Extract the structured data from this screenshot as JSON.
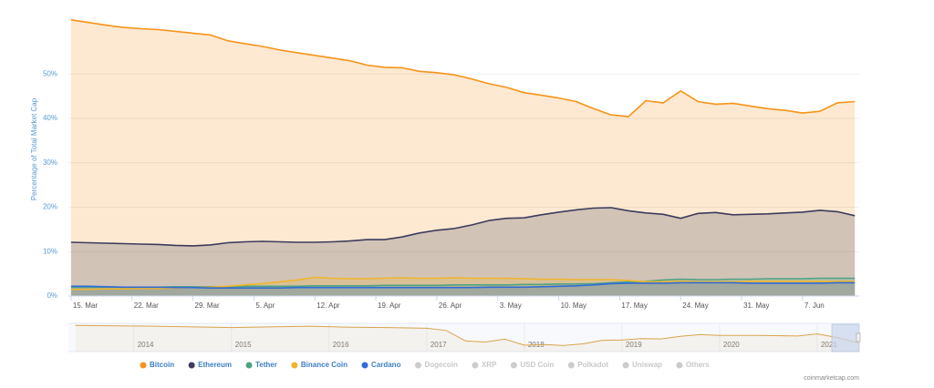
{
  "chart_data": [
    {
      "type": "line",
      "y_label": "Percentage of Total Market Cap",
      "credit": "coinmarketcap.com",
      "grid": true,
      "area": true,
      "x": [
        0,
        2,
        4,
        6,
        8,
        10,
        12,
        14,
        16,
        18,
        20,
        22,
        24,
        26,
        28,
        30,
        32,
        34,
        36,
        38,
        40,
        42,
        44,
        46,
        48,
        50,
        52,
        54,
        56,
        58,
        60,
        62,
        64,
        66,
        68,
        70,
        72,
        74,
        76,
        78,
        80,
        82,
        84,
        86,
        88,
        90
      ],
      "xlim": [
        -0.3,
        90.5
      ],
      "xticks": [
        {
          "value": 0,
          "label": "15. Mar"
        },
        {
          "value": 7,
          "label": "22. Mar"
        },
        {
          "value": 14,
          "label": "29. Mar"
        },
        {
          "value": 21,
          "label": "5. Apr"
        },
        {
          "value": 28,
          "label": "12. Apr"
        },
        {
          "value": 35,
          "label": "19. Apr"
        },
        {
          "value": 42,
          "label": "26. Apr"
        },
        {
          "value": 49,
          "label": "3. May"
        },
        {
          "value": 56,
          "label": "10. May"
        },
        {
          "value": 63,
          "label": "17. May"
        },
        {
          "value": 70,
          "label": "24. May"
        },
        {
          "value": 77,
          "label": "31. May"
        },
        {
          "value": 84,
          "label": "7. Jun"
        }
      ],
      "ylim": [
        0,
        64
      ],
      "yticks": [
        {
          "value": 0,
          "label": "0%"
        },
        {
          "value": 10,
          "label": "10%"
        },
        {
          "value": 20,
          "label": "20%"
        },
        {
          "value": 30,
          "label": "30%"
        },
        {
          "value": 40,
          "label": "40%"
        },
        {
          "value": 50,
          "label": "50%"
        }
      ],
      "series": [
        {
          "name": "Bitcoin",
          "color": "#f7931a",
          "values": [
            62.2,
            61.6,
            61.0,
            60.5,
            60.2,
            60.0,
            59.6,
            59.2,
            58.8,
            57.5,
            56.8,
            56.2,
            55.4,
            54.8,
            54.2,
            53.6,
            53.0,
            52.0,
            51.5,
            51.4,
            50.6,
            50.3,
            49.8,
            48.9,
            47.8,
            47.0,
            45.8,
            45.2,
            44.6,
            43.8,
            42.2,
            40.8,
            40.4,
            44.0,
            43.5,
            46.2,
            43.8,
            43.2,
            43.4,
            42.8,
            42.2,
            41.8,
            41.2,
            41.6,
            43.5,
            43.8
          ]
        },
        {
          "name": "Ethereum",
          "color": "#3c3c5d",
          "values": [
            12.1,
            12.0,
            11.9,
            11.8,
            11.7,
            11.6,
            11.4,
            11.3,
            11.5,
            12.0,
            12.2,
            12.3,
            12.2,
            12.1,
            12.1,
            12.2,
            12.4,
            12.7,
            12.7,
            13.3,
            14.2,
            14.8,
            15.2,
            16.0,
            17.0,
            17.5,
            17.6,
            18.3,
            18.9,
            19.4,
            19.8,
            19.9,
            19.2,
            18.7,
            18.4,
            17.5,
            18.6,
            18.8,
            18.3,
            18.4,
            18.5,
            18.7,
            18.9,
            19.3,
            19.0,
            18.1
          ]
        },
        {
          "name": "Tether",
          "color": "#4fa383",
          "values": [
            2.0,
            2.0,
            2.0,
            2.0,
            2.0,
            2.0,
            2.1,
            2.1,
            2.1,
            2.1,
            2.2,
            2.2,
            2.2,
            2.2,
            2.3,
            2.3,
            2.3,
            2.3,
            2.4,
            2.4,
            2.4,
            2.4,
            2.5,
            2.5,
            2.5,
            2.5,
            2.6,
            2.6,
            2.7,
            2.7,
            2.8,
            3.0,
            3.2,
            3.3,
            3.6,
            3.8,
            3.7,
            3.7,
            3.8,
            3.8,
            3.9,
            3.9,
            3.9,
            4.0,
            4.0,
            4.0
          ]
        },
        {
          "name": "Binance Coin",
          "color": "#f0b52b",
          "values": [
            1.5,
            1.5,
            1.6,
            1.6,
            1.7,
            1.7,
            1.8,
            1.9,
            2.0,
            2.2,
            2.5,
            2.8,
            3.2,
            3.6,
            4.2,
            4.0,
            3.9,
            3.9,
            4.0,
            4.1,
            4.0,
            4.0,
            4.1,
            4.0,
            4.0,
            4.0,
            3.9,
            3.8,
            3.8,
            3.7,
            3.7,
            3.7,
            3.5,
            3.2,
            3.2,
            3.3,
            3.2,
            3.2,
            3.2,
            3.3,
            3.3,
            3.3,
            3.3,
            3.3,
            3.3,
            3.3
          ]
        },
        {
          "name": "Cardano",
          "color": "#2f6bd6",
          "values": [
            2.2,
            2.2,
            2.1,
            2.0,
            2.0,
            2.0,
            1.9,
            1.9,
            1.8,
            1.8,
            1.8,
            1.8,
            1.8,
            1.9,
            1.9,
            1.9,
            1.9,
            1.9,
            1.9,
            1.9,
            1.9,
            1.9,
            1.9,
            1.9,
            2.0,
            2.0,
            2.0,
            2.1,
            2.2,
            2.3,
            2.5,
            2.8,
            2.9,
            2.9,
            2.9,
            3.0,
            3.0,
            3.0,
            3.0,
            2.9,
            2.9,
            2.9,
            2.9,
            2.9,
            3.0,
            3.0
          ]
        }
      ],
      "hidden_series": [
        "Dogecoin",
        "XRP",
        "USD Coin",
        "Polkadot",
        "Uniswap",
        "Others"
      ]
    },
    {
      "type": "navigator",
      "color": "#d9a44c",
      "x": [
        2013.4,
        2013.8,
        2014.2,
        2014.6,
        2015,
        2015.4,
        2015.8,
        2016.2,
        2016.6,
        2017,
        2017.2,
        2017.4,
        2017.6,
        2017.8,
        2018,
        2018.2,
        2018.4,
        2018.6,
        2018.8,
        2019,
        2019.2,
        2019.4,
        2019.6,
        2019.8,
        2020,
        2020.4,
        2020.8,
        2021,
        2021.2,
        2021.43
      ],
      "values": [
        94,
        93,
        92,
        90,
        88,
        90,
        92,
        89,
        88,
        86,
        80,
        50,
        47,
        55,
        38,
        40,
        37,
        42,
        52,
        53,
        57,
        56,
        63,
        68,
        66,
        66,
        64,
        70,
        60,
        44
      ],
      "xlim": [
        2013.33,
        2021.43
      ],
      "ylim": [
        20,
        100
      ],
      "xticks": [
        2014,
        2015,
        2016,
        2017,
        2018,
        2019,
        2020,
        2021
      ]
    }
  ]
}
